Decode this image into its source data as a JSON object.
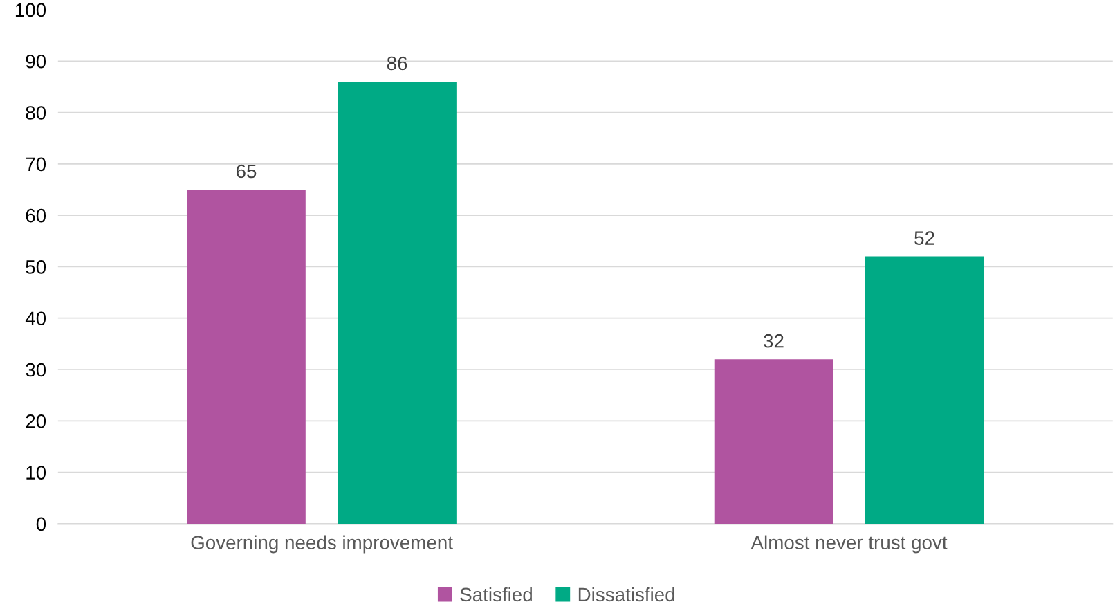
{
  "chart_data": {
    "type": "bar",
    "categories": [
      "Governing needs improvement",
      "Almost never trust govt"
    ],
    "series": [
      {
        "name": "Satisfied",
        "color": "#b054a0",
        "values": [
          65,
          32
        ]
      },
      {
        "name": "Dissatisfied",
        "color": "#00aa85",
        "values": [
          86,
          52
        ]
      }
    ],
    "ylim": [
      0,
      100
    ],
    "yticks": [
      0,
      10,
      20,
      30,
      40,
      50,
      60,
      70,
      80,
      90,
      100
    ],
    "grid": "y",
    "legend": "bottom",
    "data_labels": true
  }
}
